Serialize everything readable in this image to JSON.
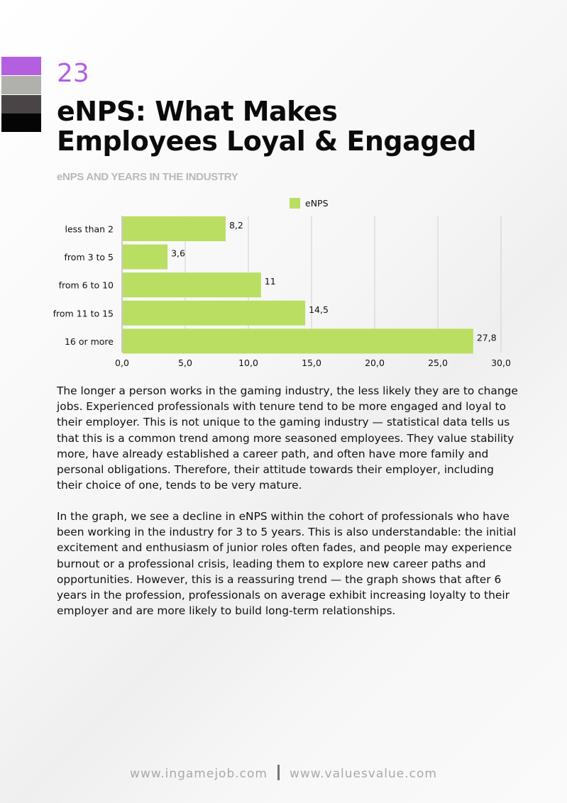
{
  "page": {
    "number": "23",
    "title_line1": "eNPS: What Makes",
    "title_line2": "Employees Loyal & Engaged",
    "chart_title": "eNPS AND YEARS IN THE INDUSTRY"
  },
  "colors": {
    "accent": "#b45fe0",
    "bar": "#bade62",
    "swatches": [
      "#b45fe0",
      "#b1b1ac",
      "#4a4447",
      "#050505"
    ]
  },
  "chart_data": {
    "type": "bar",
    "orientation": "horizontal",
    "title": "eNPS AND YEARS IN THE INDUSTRY",
    "categories": [
      "less than 2",
      "from 3 to 5",
      "from 6 to 10",
      "from 11 to 15",
      "16 or more"
    ],
    "series": [
      {
        "name": "eNPS",
        "values": [
          8.2,
          3.6,
          11,
          14.5,
          27.8
        ]
      }
    ],
    "data_labels": [
      "8,2",
      "3,6",
      "11",
      "14,5",
      "27,8"
    ],
    "x_ticks": [
      "0,0",
      "5,0",
      "10,0",
      "15,0",
      "20,0",
      "25,0",
      "30,0"
    ],
    "xlim": [
      0,
      30
    ],
    "xlabel": "",
    "ylabel": "",
    "grid": true,
    "legend": "top-center"
  },
  "body": {
    "paragraph1": "The longer a person works in the gaming industry, the less likely they are to change jobs. Experienced professionals with tenure tend to be more engaged and loyal to their employer. This is not unique to the gaming industry — statistical data tells us that this is a common trend among more seasoned employees. They value stability more, have already established a career path, and often have more family and personal obligations. Therefore, their attitude towards their employer, including their choice of one, tends to be very mature.",
    "paragraph2": "In the graph, we see a decline in eNPS within the cohort of professionals who have been working in the industry for 3 to 5 years. This is also understandable: the initial excitement and enthusiasm of junior roles often fades, and people may experience burnout or a professional crisis, leading them to explore new career paths and opportunities. However, this is a reassuring trend — the graph shows that after 6 years in the profession, professionals on average exhibit increasing loyalty to their employer and are more likely to build long-term relationships."
  },
  "footer": {
    "site1": "www.ingamejob.com",
    "site2": "www.valuesvalue.com"
  }
}
